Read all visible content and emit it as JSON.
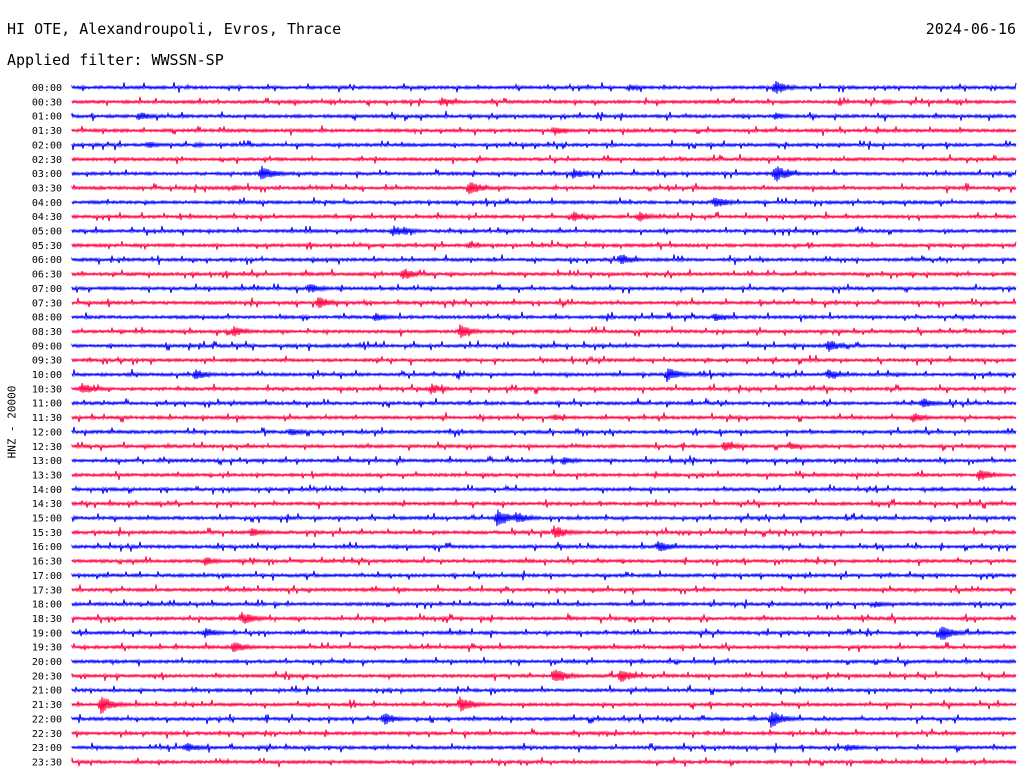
{
  "header": {
    "station": "HI OTE, Alexandroupoli, Evros, Thrace",
    "date": "2024-06-16",
    "filter": "Applied filter: WWSSN-SP",
    "channel_label": "HNZ - 20000"
  },
  "colors": {
    "even_rows": "#0000ff",
    "odd_rows": "#ff0040",
    "background": "#ffffff"
  },
  "chart_data": {
    "type": "line",
    "title": "HI OTE, Alexandroupoli, Evros, Thrace",
    "ylabel": "HNZ - 20000",
    "rows": [
      "00:00",
      "00:30",
      "01:00",
      "01:30",
      "02:00",
      "02:30",
      "03:00",
      "03:30",
      "04:00",
      "04:30",
      "05:00",
      "05:30",
      "06:00",
      "06:30",
      "07:00",
      "07:30",
      "08:00",
      "08:30",
      "09:00",
      "09:30",
      "10:00",
      "10:30",
      "11:00",
      "11:30",
      "12:00",
      "12:30",
      "13:00",
      "13:30",
      "14:00",
      "14:30",
      "15:00",
      "15:30",
      "16:00",
      "16:30",
      "17:00",
      "17:30",
      "18:00",
      "18:30",
      "19:00",
      "19:30",
      "20:00",
      "20:30",
      "21:00",
      "21:30",
      "22:00",
      "22:30",
      "23:00",
      "23:30"
    ],
    "row_colors": "alternating blue / red traces, one trace per 30-minute row",
    "events": [
      {
        "row": 0,
        "t": 0.744,
        "amp": 8
      },
      {
        "row": 0,
        "t": 0.59,
        "amp": 4
      },
      {
        "row": 1,
        "t": 0.39,
        "amp": 5
      },
      {
        "row": 1,
        "t": 0.86,
        "amp": 3
      },
      {
        "row": 2,
        "t": 0.07,
        "amp": 5
      },
      {
        "row": 2,
        "t": 0.744,
        "amp": 4
      },
      {
        "row": 3,
        "t": 0.51,
        "amp": 5
      },
      {
        "row": 4,
        "t": 0.08,
        "amp": 4
      },
      {
        "row": 4,
        "t": 0.13,
        "amp": 3
      },
      {
        "row": 6,
        "t": 0.2,
        "amp": 9
      },
      {
        "row": 6,
        "t": 0.53,
        "amp": 6
      },
      {
        "row": 6,
        "t": 0.744,
        "amp": 10
      },
      {
        "row": 7,
        "t": 0.42,
        "amp": 8
      },
      {
        "row": 7,
        "t": 0.17,
        "amp": 3
      },
      {
        "row": 8,
        "t": 0.68,
        "amp": 7
      },
      {
        "row": 9,
        "t": 0.53,
        "amp": 6
      },
      {
        "row": 9,
        "t": 0.6,
        "amp": 6
      },
      {
        "row": 10,
        "t": 0.34,
        "amp": 6
      },
      {
        "row": 10,
        "t": 0.35,
        "amp": 5
      },
      {
        "row": 11,
        "t": 0.42,
        "amp": 4
      },
      {
        "row": 12,
        "t": 0.58,
        "amp": 7
      },
      {
        "row": 13,
        "t": 0.35,
        "amp": 7
      },
      {
        "row": 14,
        "t": 0.25,
        "amp": 6
      },
      {
        "row": 15,
        "t": 0.26,
        "amp": 7
      },
      {
        "row": 16,
        "t": 0.32,
        "amp": 5
      },
      {
        "row": 16,
        "t": 0.68,
        "amp": 5
      },
      {
        "row": 17,
        "t": 0.41,
        "amp": 8
      },
      {
        "row": 17,
        "t": 0.17,
        "amp": 6
      },
      {
        "row": 18,
        "t": 0.8,
        "amp": 7
      },
      {
        "row": 20,
        "t": 0.13,
        "amp": 6
      },
      {
        "row": 20,
        "t": 0.63,
        "amp": 8
      },
      {
        "row": 20,
        "t": 0.8,
        "amp": 6
      },
      {
        "row": 21,
        "t": 0.01,
        "amp": 7
      },
      {
        "row": 21,
        "t": 0.38,
        "amp": 6
      },
      {
        "row": 22,
        "t": 0.9,
        "amp": 6
      },
      {
        "row": 23,
        "t": 0.89,
        "amp": 6
      },
      {
        "row": 23,
        "t": 0.51,
        "amp": 4
      },
      {
        "row": 24,
        "t": 0.23,
        "amp": 5
      },
      {
        "row": 25,
        "t": 0.69,
        "amp": 6
      },
      {
        "row": 25,
        "t": 0.76,
        "amp": 5
      },
      {
        "row": 26,
        "t": 0.52,
        "amp": 5
      },
      {
        "row": 27,
        "t": 0.96,
        "amp": 7
      },
      {
        "row": 30,
        "t": 0.45,
        "amp": 10
      },
      {
        "row": 30,
        "t": 0.47,
        "amp": 7
      },
      {
        "row": 31,
        "t": 0.51,
        "amp": 8
      },
      {
        "row": 31,
        "t": 0.19,
        "amp": 5
      },
      {
        "row": 32,
        "t": 0.62,
        "amp": 7
      },
      {
        "row": 33,
        "t": 0.14,
        "amp": 5
      },
      {
        "row": 36,
        "t": 0.85,
        "amp": 4
      },
      {
        "row": 37,
        "t": 0.18,
        "amp": 7
      },
      {
        "row": 38,
        "t": 0.92,
        "amp": 10
      },
      {
        "row": 38,
        "t": 0.14,
        "amp": 6
      },
      {
        "row": 39,
        "t": 0.17,
        "amp": 7
      },
      {
        "row": 41,
        "t": 0.51,
        "amp": 9
      },
      {
        "row": 41,
        "t": 0.58,
        "amp": 8
      },
      {
        "row": 43,
        "t": 0.03,
        "amp": 10
      },
      {
        "row": 43,
        "t": 0.41,
        "amp": 10
      },
      {
        "row": 44,
        "t": 0.33,
        "amp": 7
      },
      {
        "row": 44,
        "t": 0.74,
        "amp": 10
      },
      {
        "row": 46,
        "t": 0.12,
        "amp": 6
      },
      {
        "row": 46,
        "t": 0.82,
        "amp": 5
      }
    ]
  }
}
